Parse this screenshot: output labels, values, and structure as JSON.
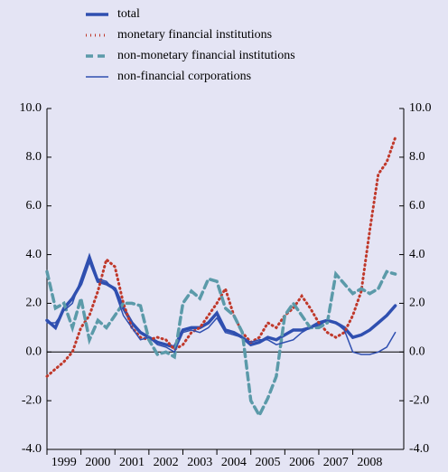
{
  "chart_data": {
    "type": "line",
    "x": [
      1999,
      1999.25,
      1999.5,
      1999.75,
      2000,
      2000.25,
      2000.5,
      2000.75,
      2001,
      2001.25,
      2001.5,
      2001.75,
      2002,
      2002.25,
      2002.5,
      2002.75,
      2003,
      2003.25,
      2003.5,
      2003.75,
      2004,
      2004.25,
      2004.5,
      2004.75,
      2005,
      2005.25,
      2005.5,
      2005.75,
      2006,
      2006.25,
      2006.5,
      2006.75,
      2007,
      2007.25,
      2007.5,
      2007.75,
      2008,
      2008.25,
      2008.5,
      2008.75,
      2009,
      2009.25
    ],
    "series": [
      {
        "name": "total",
        "color": "#2f4fb0",
        "width": 3.5,
        "dash": "none",
        "values": [
          1.3,
          1.0,
          1.8,
          2.2,
          2.8,
          3.8,
          2.9,
          2.8,
          2.6,
          1.8,
          1.2,
          0.8,
          0.6,
          0.4,
          0.3,
          0.2,
          0.9,
          1.0,
          1.0,
          1.2,
          1.6,
          0.9,
          0.8,
          0.6,
          0.3,
          0.4,
          0.6,
          0.5,
          0.7,
          0.9,
          0.9,
          1.0,
          1.2,
          1.3,
          1.2,
          1.0,
          0.6,
          0.7,
          0.9,
          1.2,
          1.5,
          1.9
        ]
      },
      {
        "name": "monetary financial institutions",
        "color": "#c0392b",
        "width": 3,
        "dash": "1 4",
        "values": [
          -1.0,
          -0.7,
          -0.4,
          0.0,
          1.0,
          1.5,
          2.5,
          3.8,
          3.5,
          2.0,
          1.0,
          0.6,
          0.5,
          0.6,
          0.5,
          0.1,
          0.3,
          0.8,
          1.0,
          1.5,
          2.0,
          2.6,
          1.5,
          0.8,
          0.4,
          0.6,
          1.2,
          1.0,
          1.5,
          1.8,
          2.3,
          1.8,
          1.2,
          0.8,
          0.6,
          0.8,
          1.5,
          2.5,
          5.0,
          7.3,
          7.8,
          8.8
        ]
      },
      {
        "name": "non-monetary financial institutions",
        "color": "#5b9aa9",
        "width": 3.5,
        "dash": "8 5",
        "values": [
          3.3,
          1.8,
          2.0,
          1.0,
          2.2,
          0.5,
          1.3,
          1.0,
          1.5,
          2.0,
          2.0,
          1.9,
          0.5,
          -0.1,
          0.0,
          -0.2,
          2.0,
          2.5,
          2.2,
          3.0,
          2.9,
          1.8,
          1.5,
          0.8,
          -2.0,
          -2.6,
          -1.9,
          -1.0,
          1.5,
          2.0,
          1.5,
          1.0,
          1.0,
          1.2,
          3.2,
          2.8,
          2.4,
          2.6,
          2.4,
          2.6,
          3.3,
          3.2
        ]
      },
      {
        "name": "non-financial corporations",
        "color": "#2f4fb0",
        "width": 1.5,
        "dash": "none",
        "values": [
          1.2,
          1.2,
          1.7,
          2.0,
          3.0,
          4.0,
          3.0,
          2.9,
          2.5,
          1.5,
          1.0,
          0.5,
          0.6,
          0.3,
          0.2,
          0.0,
          0.8,
          0.9,
          0.8,
          1.0,
          1.4,
          0.8,
          0.7,
          0.6,
          0.4,
          0.5,
          0.5,
          0.3,
          0.4,
          0.5,
          0.8,
          1.0,
          1.1,
          1.3,
          1.2,
          0.9,
          0.0,
          -0.1,
          -0.1,
          0.0,
          0.2,
          0.8
        ]
      }
    ],
    "xlim": [
      1999,
      2009.5
    ],
    "xticks": [
      {
        "value": 1999,
        "label": "1999"
      },
      {
        "value": 2000,
        "label": "2000"
      },
      {
        "value": 2001,
        "label": "2001"
      },
      {
        "value": 2002,
        "label": "2002"
      },
      {
        "value": 2003,
        "label": "2003"
      },
      {
        "value": 2004,
        "label": "2004"
      },
      {
        "value": 2005,
        "label": "2005"
      },
      {
        "value": 2006,
        "label": "2006"
      },
      {
        "value": 2007,
        "label": "2007"
      },
      {
        "value": 2008,
        "label": "2008"
      }
    ],
    "ylim": [
      -4,
      10
    ],
    "yticks": [
      {
        "value": -4,
        "label": "-4.0"
      },
      {
        "value": -2,
        "label": "-2.0"
      },
      {
        "value": 0,
        "label": "0.0"
      },
      {
        "value": 2,
        "label": "2.0"
      },
      {
        "value": 4,
        "label": "4.0"
      },
      {
        "value": 6,
        "label": "6.0"
      },
      {
        "value": 8,
        "label": "8.0"
      },
      {
        "value": 10,
        "label": "10.0"
      }
    ]
  }
}
